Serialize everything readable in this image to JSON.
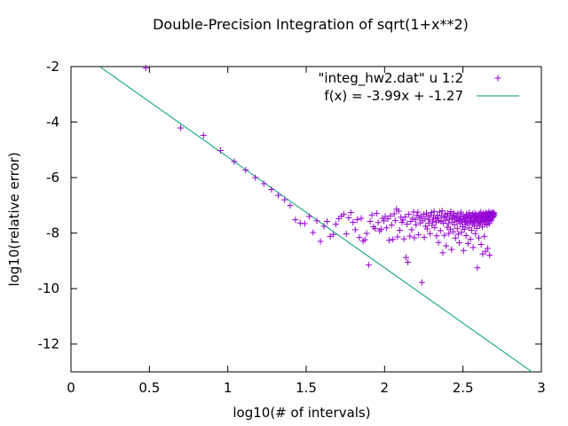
{
  "chart_data": {
    "type": "scatter",
    "title": "Double-Precision Integration of sqrt(1+x**2)",
    "xlabel": "log10(# of intervals)",
    "ylabel": "log10(relative error)",
    "xlim": [
      0,
      3
    ],
    "ylim": [
      -13,
      -2
    ],
    "x_ticks": [
      "0",
      "0.5",
      "1",
      "1.5",
      "2",
      "2.5",
      "3"
    ],
    "y_ticks": [
      "-2",
      "-4",
      "-6",
      "-8",
      "-10",
      "-12"
    ],
    "grid": false,
    "legend_position": "top-right",
    "series": [
      {
        "name": "\"integ_hw2.dat\" u 1:2",
        "kind": "points",
        "marker": "plus",
        "color": "#9400d3",
        "x": [
          0.477,
          0.699,
          0.845,
          0.954,
          1.041,
          1.114,
          1.176,
          1.23,
          1.279,
          1.322,
          1.362,
          1.398,
          1.431,
          1.462,
          1.491,
          1.519,
          1.544,
          1.568,
          1.591,
          1.613,
          1.633,
          1.653,
          1.672,
          1.69,
          1.708,
          1.724,
          1.74,
          1.756,
          1.771,
          1.785,
          1.799,
          1.813,
          1.826,
          1.839,
          1.851,
          1.863,
          1.875,
          1.886,
          1.898,
          1.908,
          1.919,
          1.929,
          1.94,
          1.949,
          1.959,
          1.968,
          1.978,
          1.987,
          1.996,
          2.004,
          2.013,
          2.021,
          2.029,
          2.037,
          2.045,
          2.053,
          2.061,
          2.068,
          2.076,
          2.083,
          2.09,
          2.097,
          2.104,
          2.111,
          2.117,
          2.124,
          2.13,
          2.137,
          2.143,
          2.149,
          2.155,
          2.161,
          2.167,
          2.173,
          2.179,
          2.185,
          2.19,
          2.196,
          2.201,
          2.207,
          2.212,
          2.217,
          2.223,
          2.228,
          2.233,
          2.238,
          2.243,
          2.248,
          2.253,
          2.258,
          2.262,
          2.267,
          2.272,
          2.276,
          2.281,
          2.286,
          2.29,
          2.294,
          2.299,
          2.303,
          2.307,
          2.312,
          2.316,
          2.32,
          2.324,
          2.328,
          2.332,
          2.336,
          2.34,
          2.344,
          2.348,
          2.352,
          2.356,
          2.36,
          2.364,
          2.367,
          2.371,
          2.375,
          2.378,
          2.382,
          2.386,
          2.389,
          2.393,
          2.396,
          2.4,
          2.403,
          2.407,
          2.41,
          2.413,
          2.417,
          2.42,
          2.423,
          2.427,
          2.43,
          2.433,
          2.436,
          2.439,
          2.442,
          2.446,
          2.449,
          2.452,
          2.455,
          2.458,
          2.461,
          2.464,
          2.467,
          2.47,
          2.473,
          2.476,
          2.479,
          2.481,
          2.484,
          2.487,
          2.49,
          2.493,
          2.496,
          2.498,
          2.501,
          2.504,
          2.507,
          2.509,
          2.512,
          2.515,
          2.517,
          2.52,
          2.522,
          2.525,
          2.528,
          2.53,
          2.533,
          2.535,
          2.538,
          2.54,
          2.543,
          2.545,
          2.548,
          2.55,
          2.553,
          2.555,
          2.558,
          2.56,
          2.562,
          2.565,
          2.567,
          2.569,
          2.572,
          2.574,
          2.576,
          2.579,
          2.581,
          2.583,
          2.585,
          2.588,
          2.59,
          2.592,
          2.594,
          2.597,
          2.599,
          2.601,
          2.603,
          2.605,
          2.607,
          2.61,
          2.612,
          2.614,
          2.616,
          2.618,
          2.62,
          2.622,
          2.624,
          2.626,
          2.628,
          2.63,
          2.632,
          2.634,
          2.636,
          2.638,
          2.64,
          2.642,
          2.644,
          2.646,
          2.648,
          2.65,
          2.652,
          2.654,
          2.656,
          2.658,
          2.66,
          2.662,
          2.664,
          2.666,
          2.668,
          2.67,
          2.672,
          2.674,
          2.676,
          2.678,
          2.68,
          2.682,
          2.684,
          2.686,
          2.688,
          2.69,
          2.692,
          2.694,
          2.696,
          2.698,
          2.699
        ],
        "y": [
          -2.05,
          -4.21,
          -4.48,
          -5.02,
          -5.42,
          -5.73,
          -6.0,
          -6.22,
          -6.43,
          -6.64,
          -6.8,
          -7.01,
          -7.52,
          -7.64,
          -7.66,
          -7.4,
          -7.98,
          -7.56,
          -8.3,
          -7.75,
          -7.58,
          -8.12,
          -8.05,
          -7.68,
          -7.48,
          -7.39,
          -7.32,
          -8.03,
          -7.45,
          -7.26,
          -7.61,
          -7.88,
          -7.51,
          -8.16,
          -7.47,
          -8.29,
          -8.24,
          -8.01,
          -9.15,
          -7.58,
          -7.35,
          -7.77,
          -7.84,
          -7.29,
          -7.62,
          -7.92,
          -7.86,
          -7.47,
          -7.56,
          -7.4,
          -7.81,
          -7.49,
          -8.26,
          -7.38,
          -7.71,
          -8.23,
          -7.31,
          -7.55,
          -7.14,
          -8.14,
          -7.21,
          -7.9,
          -7.43,
          -7.61,
          -7.53,
          -8.21,
          -7.42,
          -8.88,
          -7.68,
          -9.05,
          -7.32,
          -8.11,
          -7.58,
          -7.88,
          -7.47,
          -7.24,
          -8.17,
          -7.52,
          -7.7,
          -7.37,
          -7.25,
          -8.06,
          -7.46,
          -7.63,
          -7.4,
          -9.78,
          -7.56,
          -7.33,
          -8.15,
          -7.48,
          -7.75,
          -7.28,
          -7.85,
          -7.4,
          -7.64,
          -7.51,
          -8.02,
          -7.35,
          -7.26,
          -7.72,
          -7.57,
          -7.43,
          -7.22,
          -7.8,
          -7.49,
          -7.62,
          -8.1,
          -7.36,
          -7.45,
          -8.34,
          -7.55,
          -7.24,
          -7.91,
          -7.58,
          -7.38,
          -7.2,
          -8.71,
          -7.64,
          -7.44,
          -8.08,
          -7.31,
          -7.54,
          -8.46,
          -7.42,
          -7.79,
          -7.29,
          -7.66,
          -8.01,
          -7.5,
          -7.35,
          -7.86,
          -7.23,
          -8.59,
          -7.47,
          -7.61,
          -7.4,
          -7.95,
          -7.28,
          -7.7,
          -7.52,
          -8.18,
          -7.37,
          -7.44,
          -7.58,
          -7.83,
          -7.3,
          -8.04,
          -7.55,
          -8.35,
          -7.42,
          -7.66,
          -7.48,
          -7.25,
          -7.97,
          -7.6,
          -7.34,
          -7.77,
          -7.52,
          -8.63,
          -7.4,
          -7.86,
          -7.58,
          -7.45,
          -7.7,
          -8.09,
          -7.32,
          -7.56,
          -7.64,
          -7.38,
          -8.38,
          -7.49,
          -7.81,
          -7.27,
          -7.62,
          -7.43,
          -8.22,
          -7.55,
          -7.36,
          -7.9,
          -7.47,
          -7.68,
          -7.3,
          -8.52,
          -7.58,
          -7.41,
          -7.74,
          -7.53,
          -7.28,
          -8.02,
          -7.46,
          -7.6,
          -7.34,
          -7.83,
          -7.5,
          -9.25,
          -7.44,
          -7.66,
          -7.38,
          -8.17,
          -7.57,
          -7.3,
          -7.72,
          -7.48,
          -7.62,
          -7.25,
          -8.41,
          -7.42,
          -7.55,
          -7.36,
          -7.78,
          -8.75,
          -7.46,
          -7.28,
          -7.59,
          -7.4,
          -8.12,
          -7.52,
          -7.33,
          -7.67,
          -8.66,
          -7.44,
          -7.26,
          -7.54,
          -7.37,
          -7.71,
          -7.48,
          -8.55,
          -7.31,
          -7.58,
          -7.42,
          -7.23,
          -7.65,
          -8.8,
          -7.5,
          -7.35,
          -7.28,
          -7.46,
          -7.39,
          -7.56,
          -7.31,
          -7.44,
          -7.25,
          -7.38,
          -7.33,
          -7.42,
          -7.27,
          -7.36,
          -7.3
        ]
      },
      {
        "name": "f(x) = -3.99x + -1.27",
        "kind": "line",
        "color": "#009e73",
        "slope": -3.99,
        "intercept": -1.27
      }
    ]
  }
}
